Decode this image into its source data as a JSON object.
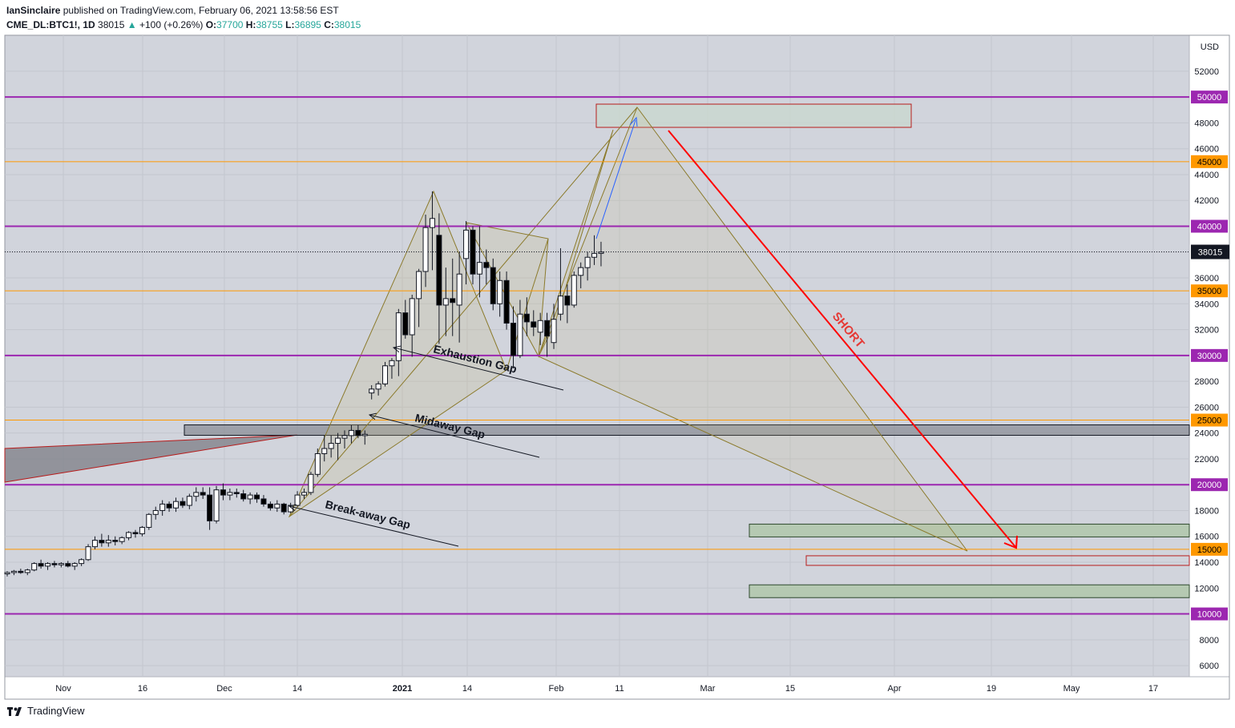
{
  "header": {
    "author": "IanSinclaire",
    "published": "published on TradingView.com, February 06, 2021 13:58:56 EST",
    "symbol": "CME_DL:BTC1!, 1D",
    "last": "38015",
    "change_arrow": "▲",
    "change": "+100 (+0.26%)",
    "o_label": "O:",
    "o": "37700",
    "h_label": "H:",
    "h": "38755",
    "l_label": "L:",
    "l": "36895",
    "c_label": "C:",
    "c": "38015"
  },
  "footer": {
    "brand": "TradingView"
  },
  "colors": {
    "background": "#d1d4dc",
    "candle_up": "#ffffff",
    "candle_down": "#000000",
    "purple_level": "#9c27b0",
    "orange_level": "#ff9800",
    "pattern": "#8b7a2b",
    "short_arrow": "#ff0000"
  },
  "chart_data": {
    "type": "candlestick",
    "currency": "USD",
    "price_axis_ticks": [
      6000,
      8000,
      10000,
      12000,
      14000,
      16000,
      18000,
      20000,
      22000,
      24000,
      26000,
      28000,
      30000,
      32000,
      34000,
      36000,
      38000,
      40000,
      42000,
      44000,
      46000,
      48000,
      50000,
      52000
    ],
    "time_axis_labels": [
      "Nov",
      "16",
      "Dec",
      "14",
      "2021",
      "14",
      "Feb",
      "11",
      "Mar",
      "15",
      "Apr",
      "19",
      "May",
      "17"
    ],
    "last_price": 38015,
    "horizontal_levels": [
      {
        "price": 50000,
        "color": "purple",
        "label": "50000"
      },
      {
        "price": 45000,
        "color": "orange",
        "label": "45000"
      },
      {
        "price": 40000,
        "color": "purple",
        "label": "40000"
      },
      {
        "price": 35000,
        "color": "orange",
        "label": "35000"
      },
      {
        "price": 30000,
        "color": "purple",
        "label": "30000"
      },
      {
        "price": 25000,
        "color": "orange",
        "label": "25000"
      },
      {
        "price": 20000,
        "color": "purple",
        "label": "20000"
      },
      {
        "price": 15000,
        "color": "orange",
        "label": "15000"
      },
      {
        "price": 10000,
        "color": "purple",
        "label": "10000"
      }
    ],
    "candles": [
      {
        "o": 13100,
        "h": 13300,
        "l": 12900,
        "c": 13200
      },
      {
        "o": 13200,
        "h": 13400,
        "l": 13000,
        "c": 13300
      },
      {
        "o": 13300,
        "h": 13500,
        "l": 13100,
        "c": 13200
      },
      {
        "o": 13200,
        "h": 13500,
        "l": 13000,
        "c": 13400
      },
      {
        "o": 13400,
        "h": 14000,
        "l": 13300,
        "c": 13900
      },
      {
        "o": 13900,
        "h": 14200,
        "l": 13500,
        "c": 13700
      },
      {
        "o": 13700,
        "h": 14000,
        "l": 13400,
        "c": 13900
      },
      {
        "o": 13900,
        "h": 14100,
        "l": 13600,
        "c": 13800
      },
      {
        "o": 13800,
        "h": 14000,
        "l": 13600,
        "c": 13900
      },
      {
        "o": 13900,
        "h": 14100,
        "l": 13600,
        "c": 13700
      },
      {
        "o": 13700,
        "h": 14000,
        "l": 13400,
        "c": 13900
      },
      {
        "o": 13900,
        "h": 14300,
        "l": 13700,
        "c": 14200
      },
      {
        "o": 14200,
        "h": 15400,
        "l": 14100,
        "c": 15200
      },
      {
        "o": 15200,
        "h": 16000,
        "l": 15000,
        "c": 15700
      },
      {
        "o": 15700,
        "h": 16200,
        "l": 15200,
        "c": 15500
      },
      {
        "o": 15500,
        "h": 16100,
        "l": 15200,
        "c": 15700
      },
      {
        "o": 15700,
        "h": 16000,
        "l": 15300,
        "c": 15600
      },
      {
        "o": 15600,
        "h": 16000,
        "l": 15400,
        "c": 15900
      },
      {
        "o": 15900,
        "h": 16400,
        "l": 15700,
        "c": 16300
      },
      {
        "o": 16300,
        "h": 16500,
        "l": 15900,
        "c": 16200
      },
      {
        "o": 16200,
        "h": 16800,
        "l": 16000,
        "c": 16700
      },
      {
        "o": 16700,
        "h": 17800,
        "l": 16500,
        "c": 17700
      },
      {
        "o": 17700,
        "h": 18300,
        "l": 17300,
        "c": 18000
      },
      {
        "o": 18000,
        "h": 18800,
        "l": 17600,
        "c": 18500
      },
      {
        "o": 18500,
        "h": 18700,
        "l": 17900,
        "c": 18200
      },
      {
        "o": 18200,
        "h": 19000,
        "l": 17900,
        "c": 18700
      },
      {
        "o": 18700,
        "h": 19000,
        "l": 18200,
        "c": 18400
      },
      {
        "o": 18400,
        "h": 19300,
        "l": 18100,
        "c": 19100
      },
      {
        "o": 19100,
        "h": 19800,
        "l": 18700,
        "c": 19400
      },
      {
        "o": 19400,
        "h": 19800,
        "l": 18900,
        "c": 19200
      },
      {
        "o": 19200,
        "h": 19800,
        "l": 16500,
        "c": 17200
      },
      {
        "o": 17200,
        "h": 19900,
        "l": 17000,
        "c": 19600
      },
      {
        "o": 19600,
        "h": 20100,
        "l": 18800,
        "c": 19200
      },
      {
        "o": 19200,
        "h": 19700,
        "l": 18800,
        "c": 19400
      },
      {
        "o": 19400,
        "h": 19700,
        "l": 19000,
        "c": 19300
      },
      {
        "o": 19300,
        "h": 19600,
        "l": 18700,
        "c": 18900
      },
      {
        "o": 18900,
        "h": 19400,
        "l": 18500,
        "c": 19200
      },
      {
        "o": 19200,
        "h": 19400,
        "l": 18600,
        "c": 18900
      },
      {
        "o": 18900,
        "h": 19200,
        "l": 18300,
        "c": 18500
      },
      {
        "o": 18500,
        "h": 18700,
        "l": 18000,
        "c": 18200
      },
      {
        "o": 18200,
        "h": 18800,
        "l": 17900,
        "c": 18500
      },
      {
        "o": 18500,
        "h": 18600,
        "l": 17700,
        "c": 17900
      },
      {
        "o": 17900,
        "h": 18600,
        "l": 17800,
        "c": 18400
      },
      {
        "o": 18400,
        "h": 19500,
        "l": 18300,
        "c": 19200
      },
      {
        "o": 19200,
        "h": 19700,
        "l": 18900,
        "c": 19400
      },
      {
        "o": 19400,
        "h": 21000,
        "l": 19200,
        "c": 20800
      },
      {
        "o": 20800,
        "h": 22800,
        "l": 20600,
        "c": 22400
      },
      {
        "o": 22400,
        "h": 23800,
        "l": 21800,
        "c": 22800
      },
      {
        "o": 22800,
        "h": 23800,
        "l": 22100,
        "c": 23200
      },
      {
        "o": 23200,
        "h": 24000,
        "l": 21900,
        "c": 23600
      },
      {
        "o": 23600,
        "h": 24200,
        "l": 22800,
        "c": 23800
      },
      {
        "o": 23800,
        "h": 24600,
        "l": 23200,
        "c": 24200
      },
      {
        "o": 24200,
        "h": 24600,
        "l": 23600,
        "c": 23800
      },
      {
        "o": 23800,
        "h": 24200,
        "l": 23100,
        "c": 23900
      },
      {
        "o": 27100,
        "h": 27700,
        "l": 26600,
        "c": 27400
      },
      {
        "o": 27400,
        "h": 28000,
        "l": 26900,
        "c": 27800
      },
      {
        "o": 27800,
        "h": 29500,
        "l": 27600,
        "c": 29200
      },
      {
        "o": 29200,
        "h": 29800,
        "l": 28200,
        "c": 29600
      },
      {
        "o": 29600,
        "h": 33600,
        "l": 28400,
        "c": 33300
      },
      {
        "o": 33300,
        "h": 34300,
        "l": 31300,
        "c": 31600
      },
      {
        "o": 31600,
        "h": 34700,
        "l": 29900,
        "c": 34400
      },
      {
        "o": 34400,
        "h": 36700,
        "l": 32200,
        "c": 36500
      },
      {
        "o": 36500,
        "h": 40900,
        "l": 35300,
        "c": 39900
      },
      {
        "o": 39900,
        "h": 42700,
        "l": 36600,
        "c": 40600
      },
      {
        "o": 39300,
        "h": 41000,
        "l": 30900,
        "c": 33900
      },
      {
        "o": 33900,
        "h": 36800,
        "l": 31500,
        "c": 34400
      },
      {
        "o": 34400,
        "h": 37500,
        "l": 31500,
        "c": 34100
      },
      {
        "o": 33900,
        "h": 38000,
        "l": 31000,
        "c": 36300
      },
      {
        "o": 37500,
        "h": 40400,
        "l": 35500,
        "c": 39700
      },
      {
        "o": 39700,
        "h": 40000,
        "l": 35500,
        "c": 36300
      },
      {
        "o": 36300,
        "h": 40000,
        "l": 34500,
        "c": 37200
      },
      {
        "o": 37200,
        "h": 38200,
        "l": 35500,
        "c": 36800
      },
      {
        "o": 36800,
        "h": 37500,
        "l": 33500,
        "c": 34000
      },
      {
        "o": 34000,
        "h": 36500,
        "l": 33000,
        "c": 35800
      },
      {
        "o": 35800,
        "h": 36500,
        "l": 32000,
        "c": 32500
      },
      {
        "o": 32500,
        "h": 33800,
        "l": 29000,
        "c": 30000
      },
      {
        "o": 30000,
        "h": 34300,
        "l": 29800,
        "c": 33200
      },
      {
        "o": 33200,
        "h": 34500,
        "l": 31500,
        "c": 32600
      },
      {
        "o": 32600,
        "h": 33500,
        "l": 31500,
        "c": 32200
      },
      {
        "o": 31800,
        "h": 33300,
        "l": 30800,
        "c": 32700
      },
      {
        "o": 32700,
        "h": 33300,
        "l": 29900,
        "c": 31500
      },
      {
        "o": 31000,
        "h": 34000,
        "l": 30500,
        "c": 32800
      },
      {
        "o": 33200,
        "h": 38300,
        "l": 32700,
        "c": 34600
      },
      {
        "o": 34600,
        "h": 35500,
        "l": 32500,
        "c": 33900
      },
      {
        "o": 33900,
        "h": 36500,
        "l": 33700,
        "c": 36200
      },
      {
        "o": 36200,
        "h": 37200,
        "l": 35200,
        "c": 36800
      },
      {
        "o": 36800,
        "h": 38000,
        "l": 35800,
        "c": 37600
      },
      {
        "o": 37600,
        "h": 39300,
        "l": 37000,
        "c": 37900
      },
      {
        "o": 37900,
        "h": 38800,
        "l": 36900,
        "c": 38000
      }
    ],
    "annotations": [
      {
        "text": "Exhaustion Gap"
      },
      {
        "text": "Midaway Gap"
      },
      {
        "text": "Break-away Gap"
      },
      {
        "text": "SHORT"
      }
    ]
  }
}
